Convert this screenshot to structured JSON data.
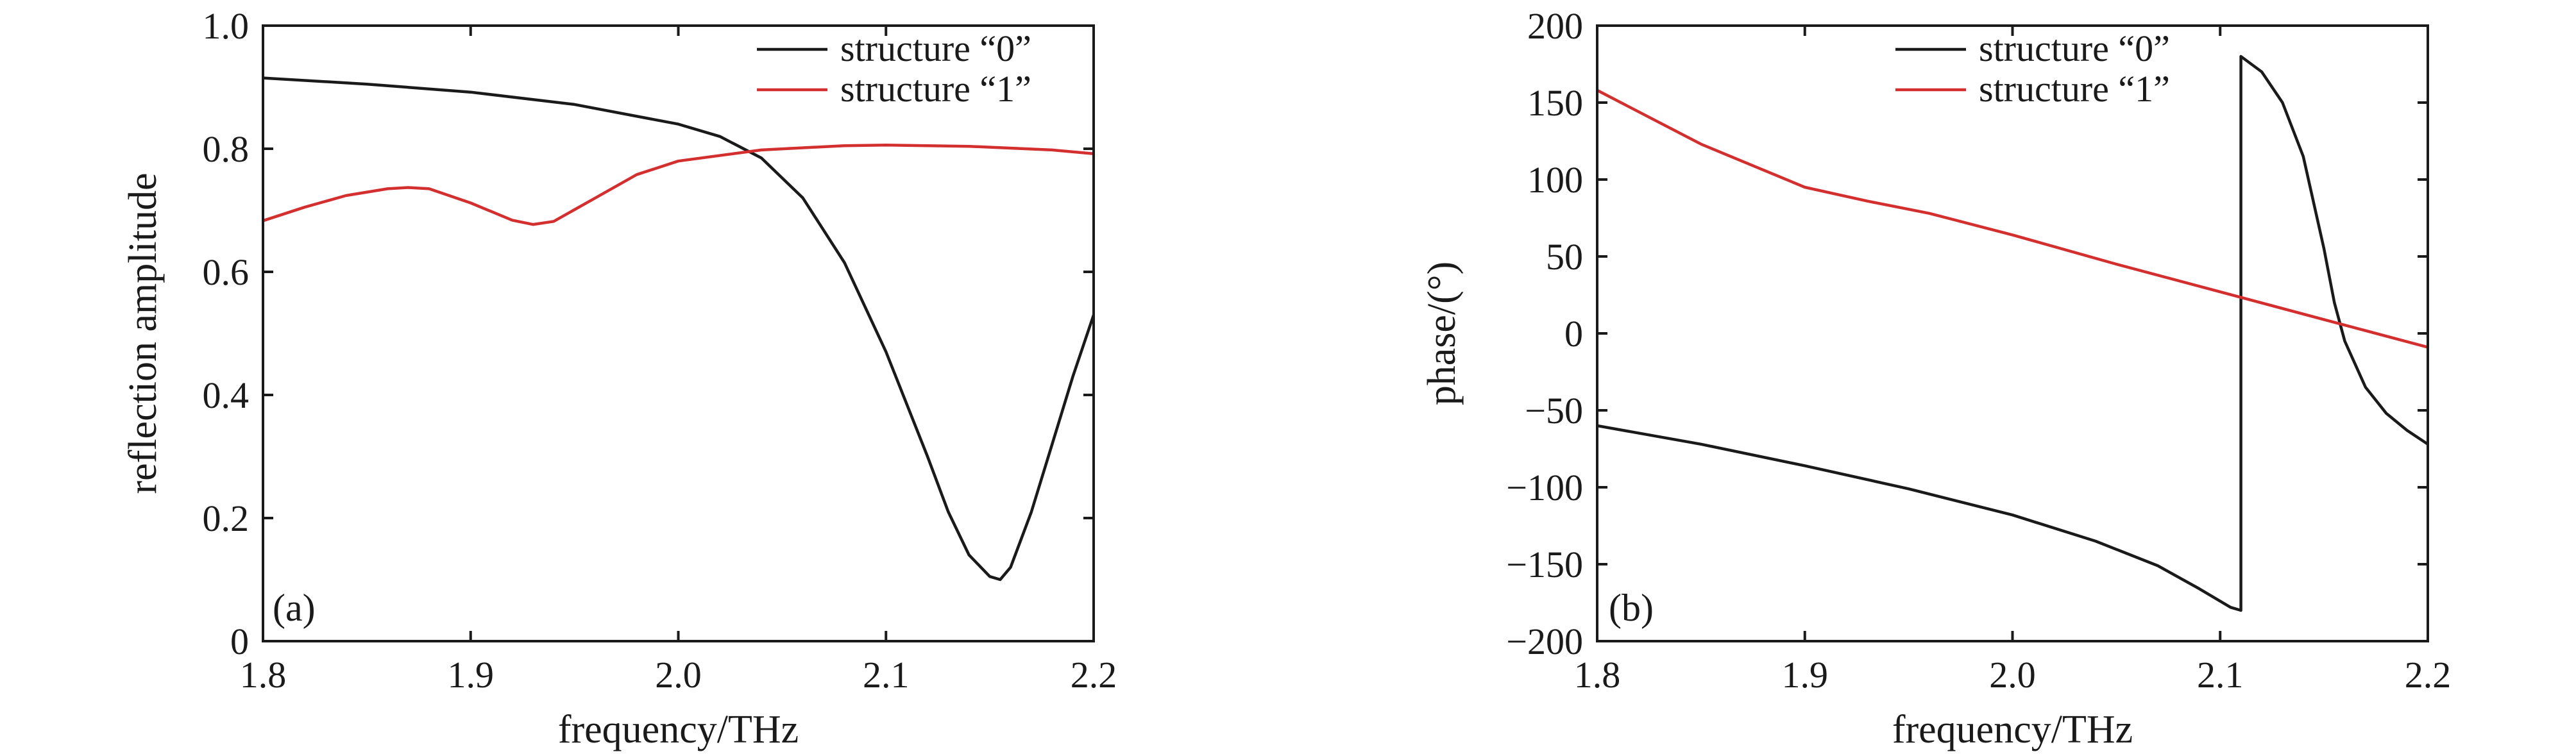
{
  "chart_data": [
    {
      "type": "line",
      "panel_label": "(a)",
      "xlabel": "frequency/THz",
      "ylabel": "reflection amplitude",
      "xlim": [
        1.8,
        2.2
      ],
      "ylim": [
        0,
        1.0
      ],
      "xticks": [
        1.8,
        1.9,
        2.0,
        2.1,
        2.2
      ],
      "xtick_labels": [
        "1.8",
        "1.9",
        "2.0",
        "2.1",
        "2.2"
      ],
      "yticks": [
        0,
        0.2,
        0.4,
        0.6,
        0.8,
        1.0
      ],
      "ytick_labels": [
        "0",
        "0.2",
        "0.4",
        "0.6",
        "0.8",
        "1.0"
      ],
      "legend_position": "top-right",
      "series": [
        {
          "name": "structure “0”",
          "color": "#1a1a1a",
          "x": [
            1.8,
            1.85,
            1.9,
            1.95,
            2.0,
            2.02,
            2.04,
            2.06,
            2.08,
            2.1,
            2.12,
            2.13,
            2.14,
            2.15,
            2.155,
            2.16,
            2.17,
            2.18,
            2.19,
            2.2
          ],
          "y": [
            0.915,
            0.905,
            0.892,
            0.872,
            0.84,
            0.82,
            0.785,
            0.72,
            0.615,
            0.47,
            0.3,
            0.21,
            0.14,
            0.105,
            0.1,
            0.12,
            0.21,
            0.32,
            0.43,
            0.53
          ]
        },
        {
          "name": "structure “1”",
          "color": "#d32f2f",
          "x": [
            1.8,
            1.82,
            1.84,
            1.86,
            1.87,
            1.88,
            1.9,
            1.92,
            1.93,
            1.94,
            1.96,
            1.98,
            2.0,
            2.04,
            2.08,
            2.1,
            2.14,
            2.18,
            2.2
          ],
          "y": [
            0.683,
            0.705,
            0.724,
            0.735,
            0.737,
            0.735,
            0.712,
            0.684,
            0.677,
            0.682,
            0.72,
            0.758,
            0.78,
            0.798,
            0.805,
            0.806,
            0.804,
            0.798,
            0.792
          ]
        }
      ]
    },
    {
      "type": "line",
      "panel_label": "(b)",
      "xlabel": "frequency/THz",
      "ylabel": "phase/(°)",
      "xlim": [
        1.8,
        2.2
      ],
      "ylim": [
        -200,
        200
      ],
      "xticks": [
        1.8,
        1.9,
        2.0,
        2.1,
        2.2
      ],
      "xtick_labels": [
        "1.8",
        "1.9",
        "2.0",
        "2.1",
        "2.2"
      ],
      "yticks": [
        -200,
        -150,
        -100,
        -50,
        0,
        50,
        100,
        150,
        200
      ],
      "ytick_labels": [
        "−200",
        "−150",
        "−100",
        "−50",
        "0",
        "50",
        "100",
        "150",
        "200"
      ],
      "legend_position": "top-center",
      "series": [
        {
          "name": "structure “0”",
          "color": "#1a1a1a",
          "x": [
            1.8,
            1.85,
            1.9,
            1.95,
            2.0,
            2.04,
            2.07,
            2.09,
            2.105,
            2.11,
            2.11,
            2.12,
            2.13,
            2.14,
            2.15,
            2.155,
            2.16,
            2.17,
            2.18,
            2.19,
            2.2
          ],
          "y": [
            -60,
            -72,
            -86,
            -101,
            -118,
            -135,
            -151,
            -166,
            -178,
            -180,
            180,
            170,
            150,
            115,
            55,
            20,
            -5,
            -35,
            -52,
            -63,
            -72
          ]
        },
        {
          "name": "structure “1”",
          "color": "#d32f2f",
          "x": [
            1.8,
            1.85,
            1.9,
            1.93,
            1.96,
            2.0,
            2.05,
            2.1,
            2.15,
            2.2
          ],
          "y": [
            158,
            123,
            95,
            86,
            78,
            64,
            45,
            27,
            9,
            -9
          ]
        }
      ]
    }
  ]
}
